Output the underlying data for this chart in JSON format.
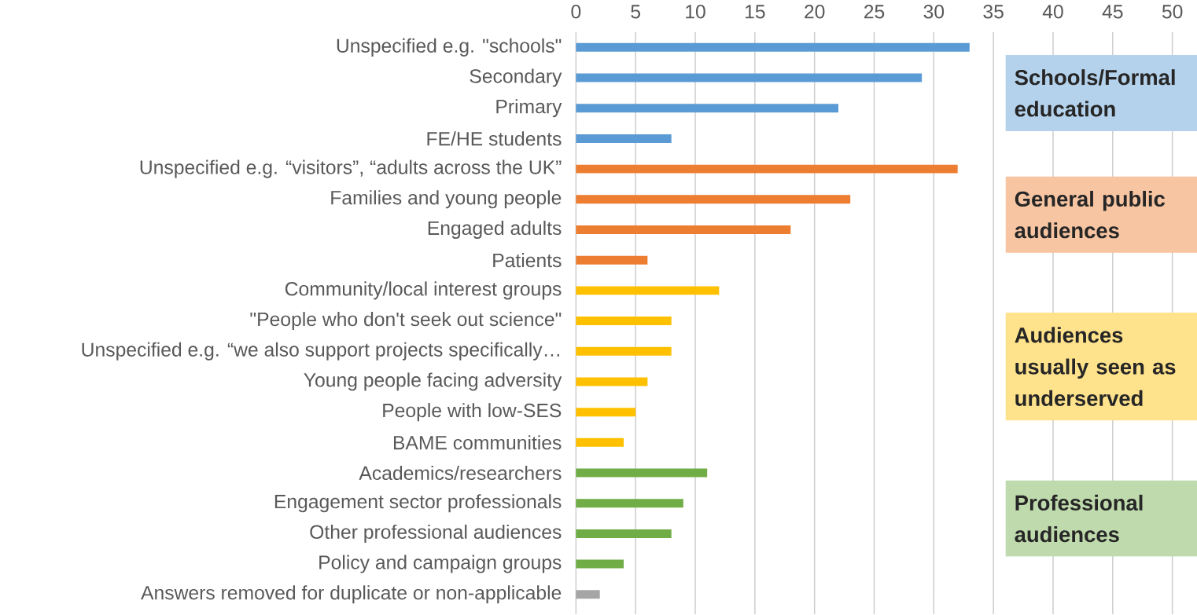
{
  "chart_data": {
    "type": "bar",
    "orientation": "horizontal",
    "categories": [
      "Unspecified e.g. \"schools\"",
      "Secondary",
      "Primary",
      "FE/HE students",
      "Unspecified e.g. “visitors”, “adults across the UK”",
      "Families and young people",
      "Engaged adults",
      "Patients",
      "Community/local interest groups",
      "\"People who don't seek out science\"",
      "Unspecified e.g. “we also support projects specifically…",
      "Young people facing adversity",
      "People with low-SES",
      "BAME communities",
      "Academics/researchers",
      "Engagement sector professionals",
      "Other professional audiences",
      "Policy and campaign groups",
      "Answers removed for duplicate or non-applicable"
    ],
    "values": [
      33,
      29,
      22,
      8,
      32,
      23,
      18,
      6,
      12,
      8,
      8,
      6,
      5,
      4,
      11,
      9,
      8,
      4,
      2
    ],
    "colors": [
      "#5b9bd5",
      "#5b9bd5",
      "#5b9bd5",
      "#5b9bd5",
      "#ed7d31",
      "#ed7d31",
      "#ed7d31",
      "#ed7d31",
      "#ffc000",
      "#ffc000",
      "#ffc000",
      "#ffc000",
      "#ffc000",
      "#ffc000",
      "#70ad47",
      "#70ad47",
      "#70ad47",
      "#70ad47",
      "#a5a5a5"
    ],
    "xlim": [
      0,
      50
    ],
    "xticks": [
      0,
      5,
      10,
      15,
      20,
      25,
      30,
      35,
      40,
      45,
      50
    ],
    "grid": "x",
    "annotations": [
      "Schools/Formal education",
      "General public audiences",
      "Audiences usually seen as underserved",
      "Professional audiences"
    ]
  }
}
